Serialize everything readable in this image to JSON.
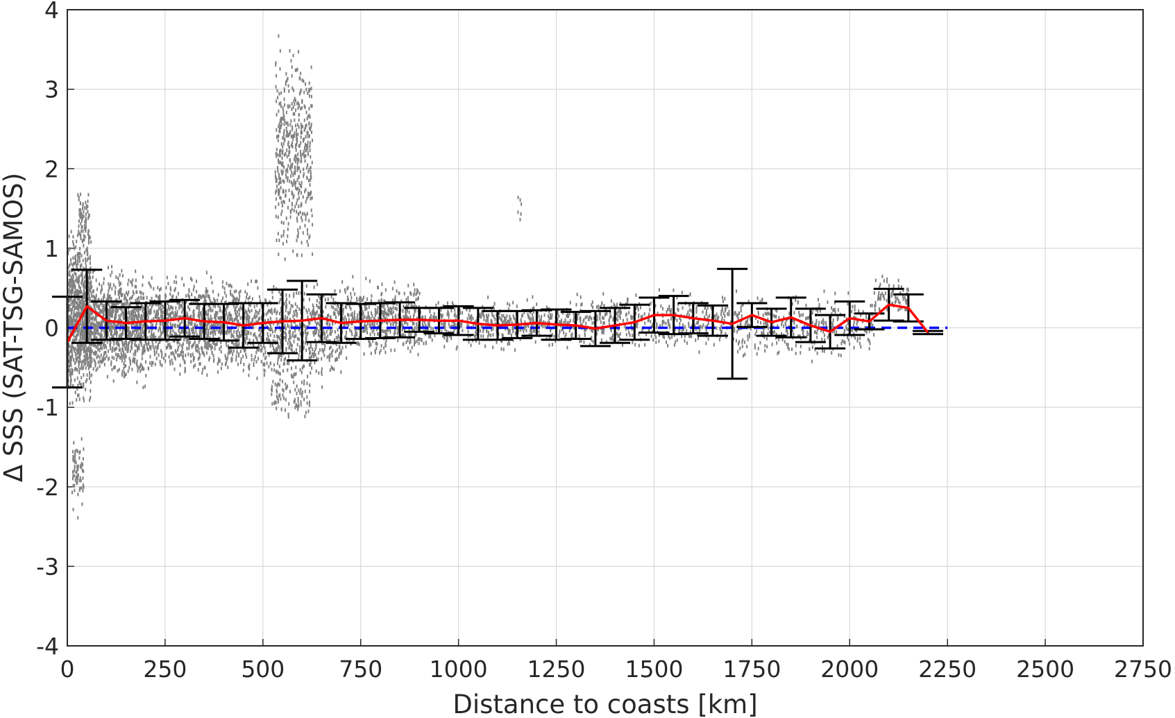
{
  "chart_data": {
    "type": "scatter",
    "xlabel": "Distance to coasts [km]",
    "ylabel": "Δ SSS (SAT-TSG-SAMOS)",
    "xlim": [
      0,
      2750
    ],
    "ylim": [
      -4,
      4
    ],
    "xticks": [
      0,
      250,
      500,
      750,
      1000,
      1250,
      1500,
      1750,
      2000,
      2250,
      2500,
      2750
    ],
    "yticks": [
      -4,
      -3,
      -2,
      -1,
      0,
      1,
      2,
      3,
      4
    ],
    "grid": true,
    "colors": {
      "scatter": "#808080",
      "mean": "#ff0000",
      "errorbar": "#000000",
      "zero_line": "#0000ff",
      "grid": "#d9d9d9",
      "axes": "#262626"
    },
    "zero_line": {
      "y": 0,
      "style": "dashed",
      "x_range": [
        0,
        2250
      ]
    },
    "series": [
      {
        "role": "bin-mean-with-std",
        "x": [
          0,
          50,
          100,
          150,
          200,
          250,
          300,
          350,
          400,
          450,
          500,
          550,
          600,
          650,
          700,
          750,
          800,
          850,
          900,
          950,
          1000,
          1050,
          1100,
          1150,
          1200,
          1250,
          1300,
          1350,
          1400,
          1450,
          1500,
          1550,
          1600,
          1650,
          1700,
          1750,
          1800,
          1850,
          1900,
          1950,
          2000,
          2050,
          2100,
          2150,
          2200
        ],
        "mean": [
          -0.18,
          0.27,
          0.09,
          0.06,
          0.08,
          0.09,
          0.12,
          0.08,
          0.07,
          0.03,
          0.06,
          0.08,
          0.09,
          0.12,
          0.06,
          0.08,
          0.09,
          0.1,
          0.1,
          0.09,
          0.09,
          0.05,
          0.03,
          0.04,
          0.06,
          0.04,
          0.03,
          -0.01,
          0.03,
          0.07,
          0.16,
          0.16,
          0.12,
          0.09,
          0.05,
          0.16,
          0.07,
          0.13,
          0.03,
          -0.05,
          0.12,
          0.08,
          0.29,
          0.25,
          -0.06
        ],
        "std": [
          0.57,
          0.46,
          0.24,
          0.2,
          0.23,
          0.24,
          0.23,
          0.22,
          0.23,
          0.28,
          0.25,
          0.4,
          0.5,
          0.3,
          0.25,
          0.22,
          0.22,
          0.22,
          0.15,
          0.16,
          0.18,
          0.2,
          0.18,
          0.17,
          0.16,
          0.19,
          0.17,
          0.22,
          0.22,
          0.22,
          0.22,
          0.24,
          0.19,
          0.19,
          0.69,
          0.15,
          0.17,
          0.25,
          0.21,
          0.21,
          0.21,
          0.1,
          0.2,
          0.17,
          0.02
        ]
      }
    ],
    "scatter_clusters": [
      {
        "x": [
          0,
          60
        ],
        "y": [
          -1.1,
          1.4
        ],
        "n": 900
      },
      {
        "x": [
          60,
          200
        ],
        "y": [
          -0.8,
          0.9
        ],
        "n": 900
      },
      {
        "x": [
          200,
          450
        ],
        "y": [
          -0.7,
          0.8
        ],
        "n": 1000
      },
      {
        "x": [
          450,
          700
        ],
        "y": [
          -0.8,
          0.75
        ],
        "n": 700
      },
      {
        "x": [
          700,
          900
        ],
        "y": [
          -0.45,
          0.7
        ],
        "n": 500
      },
      {
        "x": [
          900,
          1300
        ],
        "y": [
          -0.3,
          0.45
        ],
        "n": 550
      },
      {
        "x": [
          1300,
          1700
        ],
        "y": [
          -0.35,
          0.55
        ],
        "n": 450
      },
      {
        "x": [
          1700,
          2060
        ],
        "y": [
          -0.45,
          0.55
        ],
        "n": 380
      },
      {
        "x": [
          2060,
          2150
        ],
        "y": [
          0.1,
          0.75
        ],
        "n": 80
      },
      {
        "x": [
          530,
          625
        ],
        "y": [
          0.5,
          3.9
        ],
        "n": 500
      },
      {
        "x": [
          520,
          620
        ],
        "y": [
          -1.2,
          -0.4
        ],
        "n": 90
      },
      {
        "x": [
          10,
          40
        ],
        "y": [
          -2.4,
          -1.2
        ],
        "n": 70
      },
      {
        "x": [
          25,
          55
        ],
        "y": [
          0.8,
          1.9
        ],
        "n": 70
      },
      {
        "x": [
          1150,
          1160
        ],
        "y": [
          1.15,
          1.95
        ],
        "n": 6
      }
    ]
  }
}
